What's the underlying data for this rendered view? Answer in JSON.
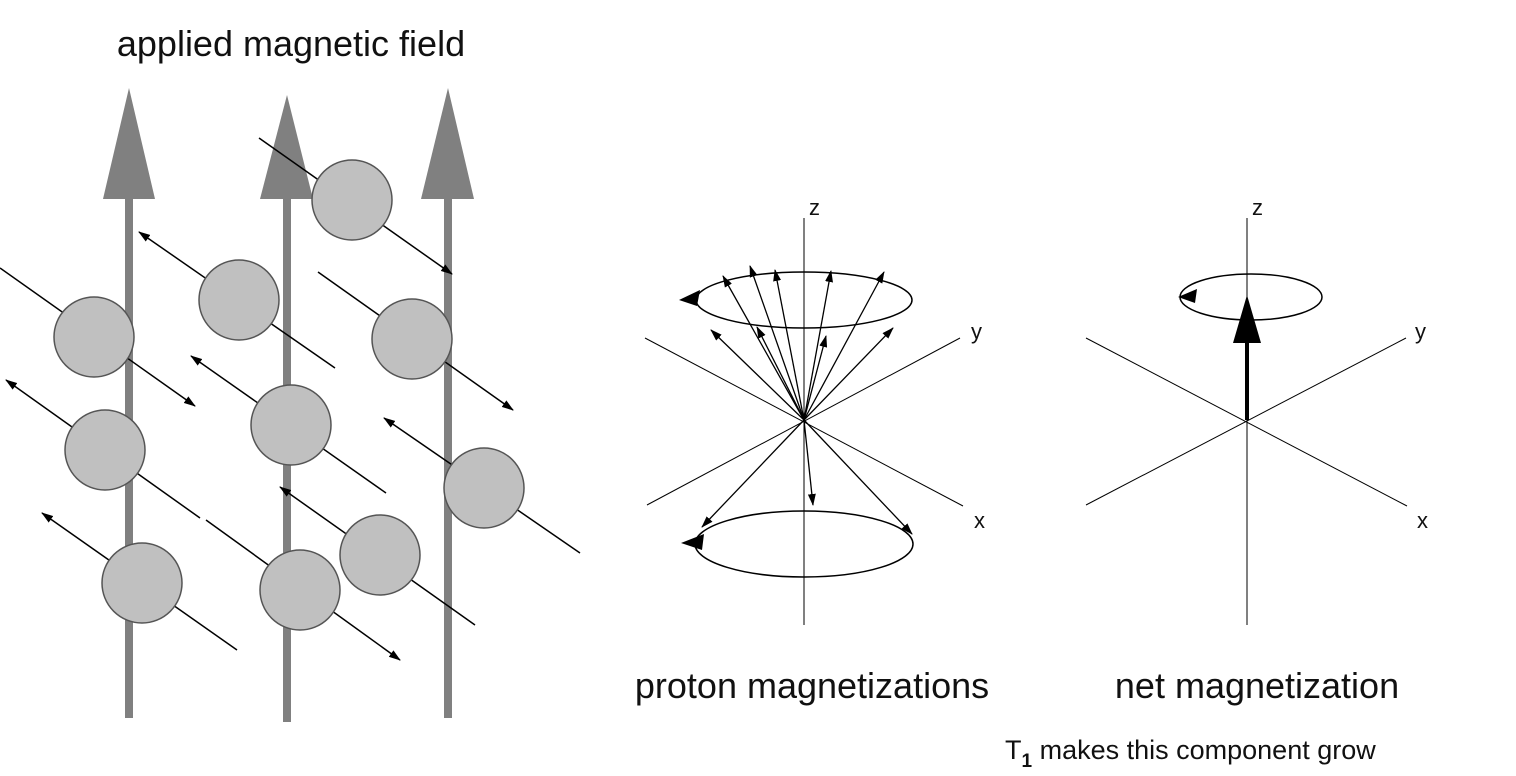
{
  "left_panel": {
    "title": "applied magnetic field",
    "colors": {
      "field_arrow": "#808080",
      "proton_fill": "#c0c0c0",
      "proton_stroke": "#555555"
    }
  },
  "proton_panel": {
    "axis_z": "z",
    "axis_y": "y",
    "axis_x": "x",
    "caption": "proton magnetizations"
  },
  "net_panel": {
    "axis_z": "z",
    "axis_y": "y",
    "axis_x": "x",
    "caption": "net magnetization",
    "note_prefix": "T",
    "note_subscript": "1",
    "note_suffix": " makes this component grow"
  }
}
